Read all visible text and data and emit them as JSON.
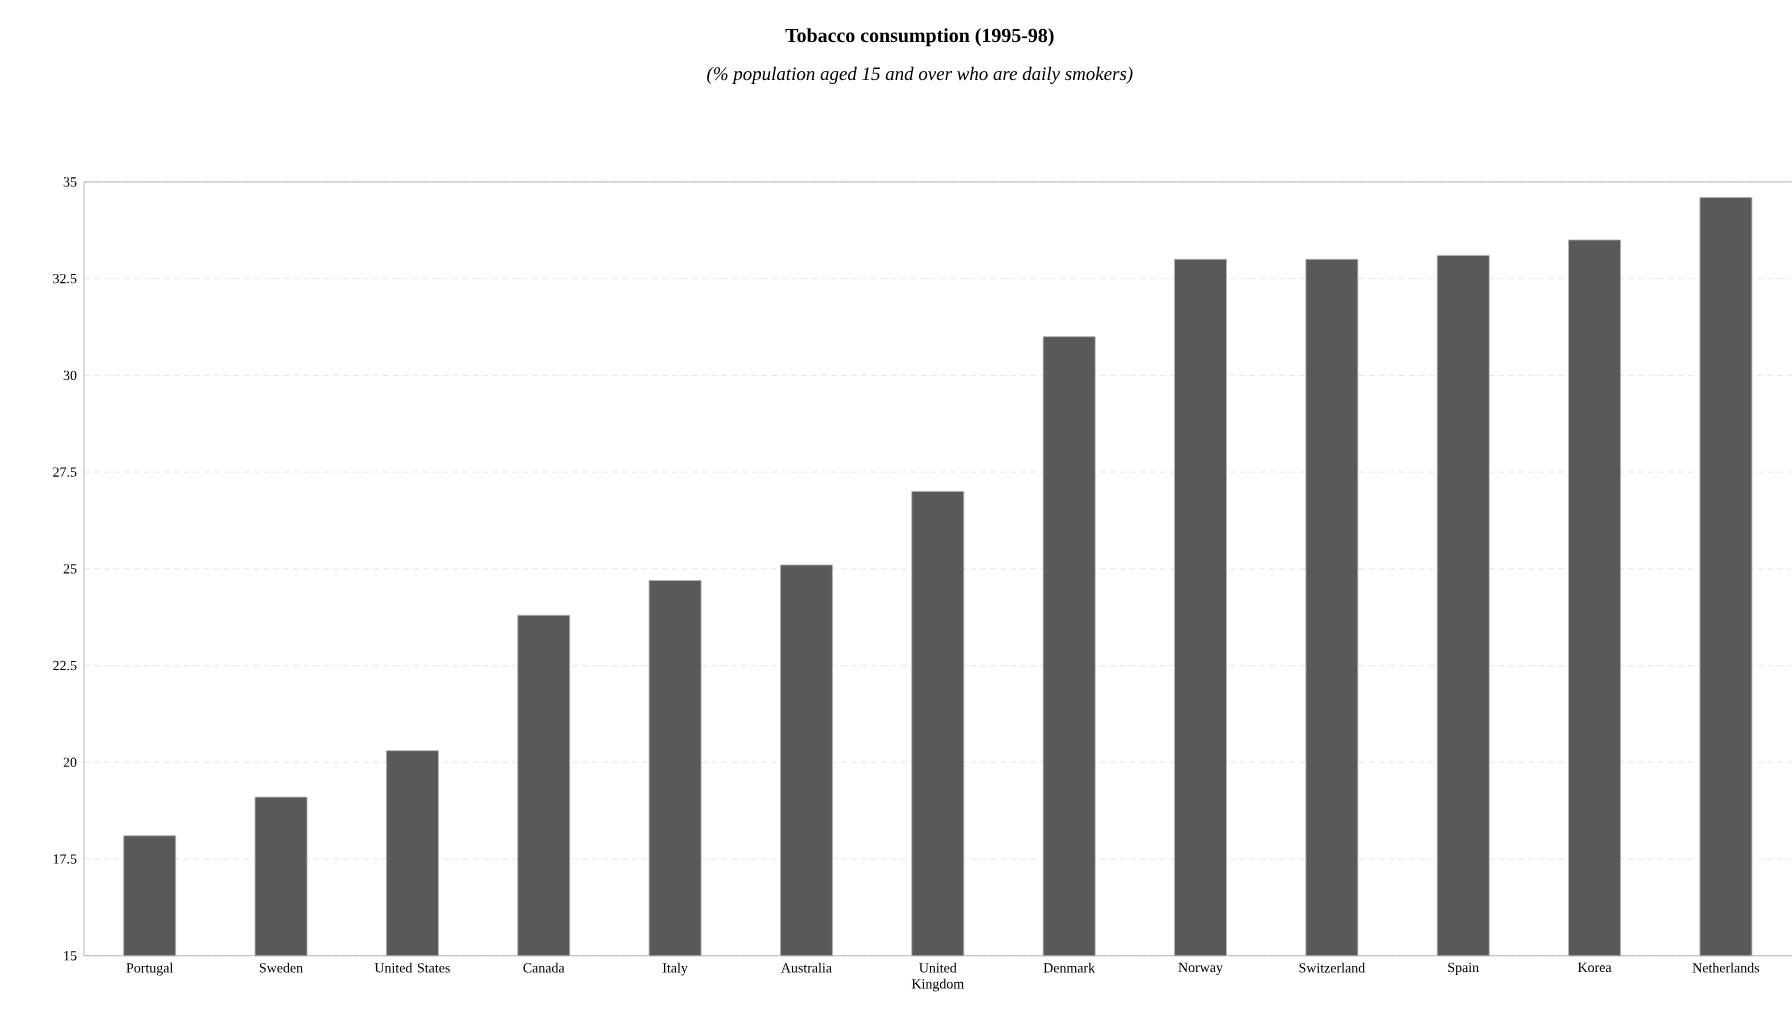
{
  "chart_data": {
    "type": "bar",
    "title": "Tobacco consumption (1995-98)",
    "subtitle": "(% population aged 15 and over who are daily smokers)",
    "categories": [
      "Portugal",
      "Sweden",
      "United States",
      "Canada",
      "Italy",
      "Australia",
      "United Kingdom",
      "Denmark",
      "Norway",
      "Switzerland",
      "Spain",
      "Korea",
      "Netherlands"
    ],
    "values": [
      18.1,
      19.1,
      20.3,
      23.8,
      24.7,
      25.1,
      27.0,
      31.0,
      33.0,
      33.0,
      33.1,
      33.5,
      34.6
    ],
    "color": "#595959",
    "ylim": [
      15,
      35
    ],
    "yticks": [
      15,
      17.5,
      20,
      22.5,
      25,
      27.5,
      30,
      32.5,
      35
    ],
    "grid": "y"
  }
}
